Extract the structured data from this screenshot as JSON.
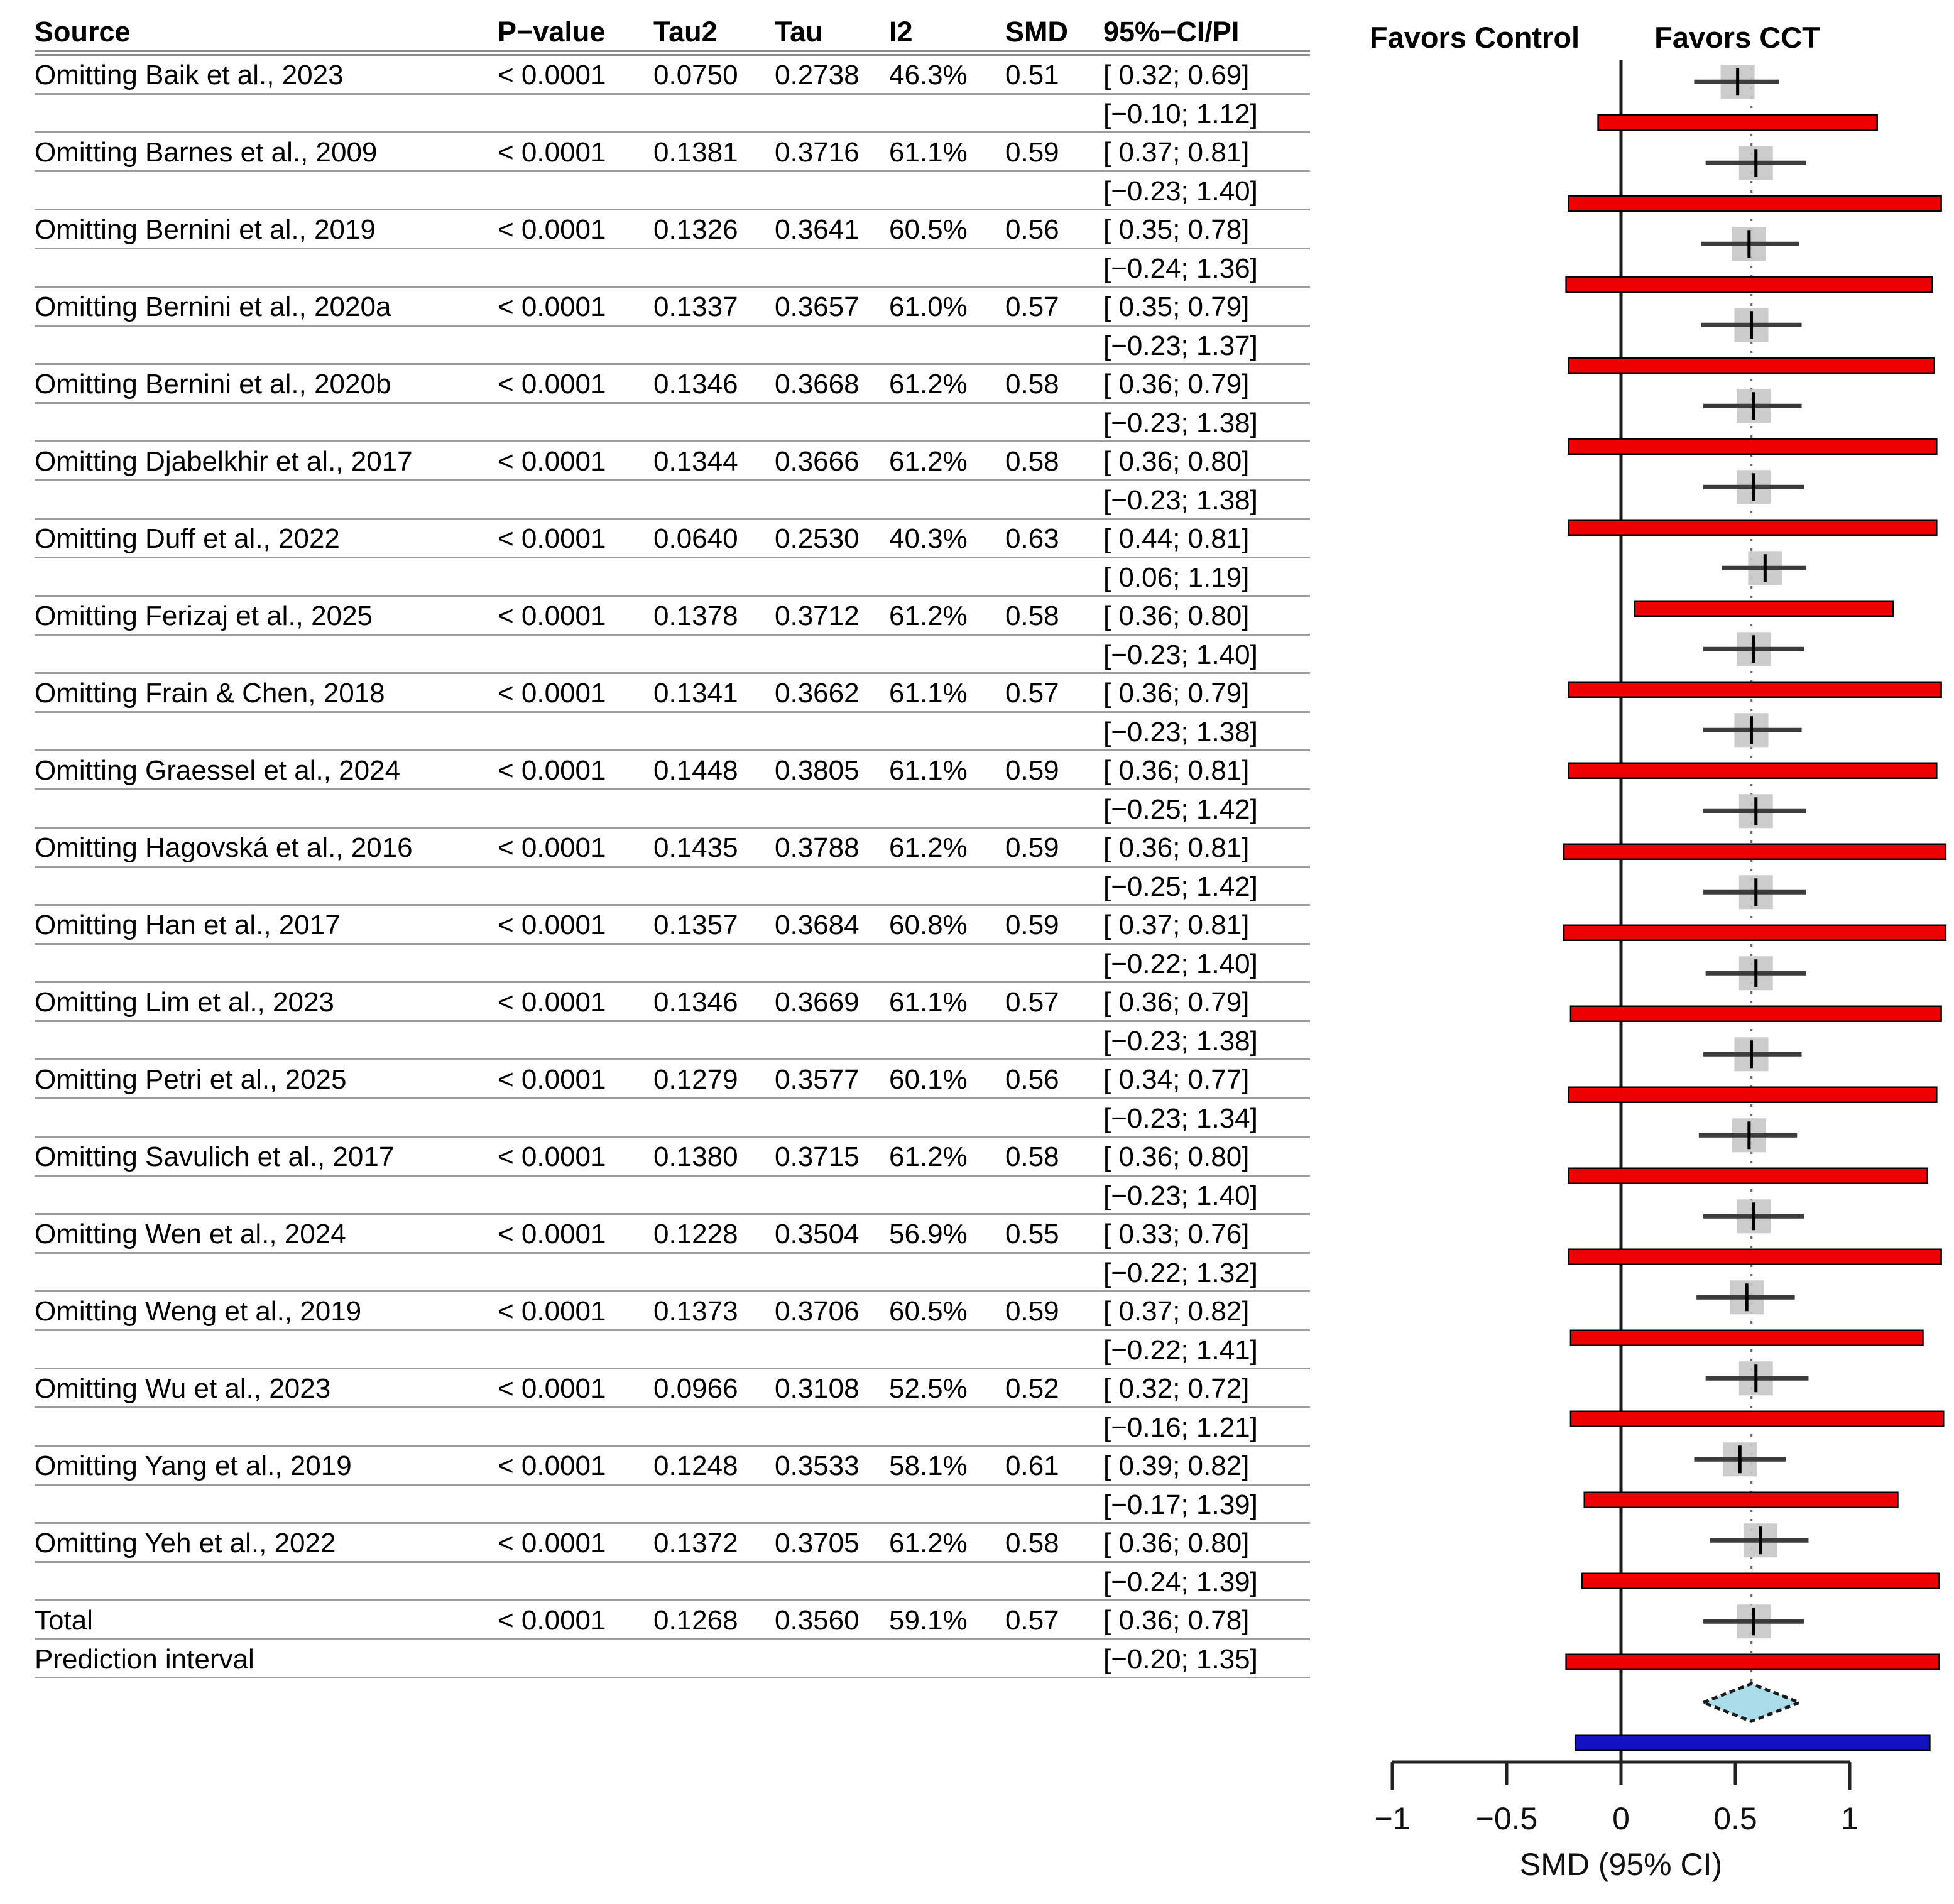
{
  "table": {
    "headers": {
      "source": "Source",
      "p": "P−value",
      "tau2": "Tau2",
      "tau": "Tau",
      "i2": "I2",
      "smd": "SMD",
      "ci": "95%−CI/PI"
    }
  },
  "chart_data": {
    "type": "forest",
    "xlabel": "SMD (95% CI)",
    "x_ticks": [
      "−1",
      "−0.5",
      "0",
      "0.5",
      "1"
    ],
    "x_tick_values": [
      -1,
      -0.5,
      0,
      0.5,
      1
    ],
    "xlim": [
      -1,
      1.46
    ],
    "favors_left": "Favors Control",
    "favors_right": "Favors CCT",
    "reference_line": 0,
    "overall_dotted_line": 0.57,
    "colors": {
      "pi_bar": "#ee0000",
      "prediction_bar": "#1212c4",
      "diamond_fill": "#aadde9",
      "square_fill": "#c6c6c6",
      "whisker": "#3c3c3c",
      "rule": "#9c9c9c"
    },
    "studies": [
      {
        "source": "Omitting Baik et al., 2023",
        "p": "< 0.0001",
        "tau2": "0.0750",
        "tau": "0.2738",
        "i2": "46.3%",
        "smd": 0.51,
        "smd_text": "0.51",
        "ci": [
          0.32,
          0.69
        ],
        "ci_text": "[ 0.32; 0.69]",
        "pi": [
          -0.1,
          1.12
        ],
        "pi_text": "[−0.10; 1.12]"
      },
      {
        "source": "Omitting Barnes et al., 2009",
        "p": "< 0.0001",
        "tau2": "0.1381",
        "tau": "0.3716",
        "i2": "61.1%",
        "smd": 0.59,
        "smd_text": "0.59",
        "ci": [
          0.37,
          0.81
        ],
        "ci_text": "[ 0.37; 0.81]",
        "pi": [
          -0.23,
          1.4
        ],
        "pi_text": "[−0.23; 1.40]"
      },
      {
        "source": "Omitting Bernini et al., 2019",
        "p": "< 0.0001",
        "tau2": "0.1326",
        "tau": "0.3641",
        "i2": "60.5%",
        "smd": 0.56,
        "smd_text": "0.56",
        "ci": [
          0.35,
          0.78
        ],
        "ci_text": "[ 0.35; 0.78]",
        "pi": [
          -0.24,
          1.36
        ],
        "pi_text": "[−0.24; 1.36]"
      },
      {
        "source": "Omitting Bernini et al., 2020a",
        "p": "< 0.0001",
        "tau2": "0.1337",
        "tau": "0.3657",
        "i2": "61.0%",
        "smd": 0.57,
        "smd_text": "0.57",
        "ci": [
          0.35,
          0.79
        ],
        "ci_text": "[ 0.35; 0.79]",
        "pi": [
          -0.23,
          1.37
        ],
        "pi_text": "[−0.23; 1.37]"
      },
      {
        "source": "Omitting Bernini et al., 2020b",
        "p": "< 0.0001",
        "tau2": "0.1346",
        "tau": "0.3668",
        "i2": "61.2%",
        "smd": 0.58,
        "smd_text": "0.58",
        "ci": [
          0.36,
          0.79
        ],
        "ci_text": "[ 0.36; 0.79]",
        "pi": [
          -0.23,
          1.38
        ],
        "pi_text": "[−0.23; 1.38]"
      },
      {
        "source": "Omitting Djabelkhir et al., 2017",
        "p": "< 0.0001",
        "tau2": "0.1344",
        "tau": "0.3666",
        "i2": "61.2%",
        "smd": 0.58,
        "smd_text": "0.58",
        "ci": [
          0.36,
          0.8
        ],
        "ci_text": "[ 0.36; 0.80]",
        "pi": [
          -0.23,
          1.38
        ],
        "pi_text": "[−0.23; 1.38]"
      },
      {
        "source": "Omitting Duff et al., 2022",
        "p": "< 0.0001",
        "tau2": "0.0640",
        "tau": "0.2530",
        "i2": "40.3%",
        "smd": 0.63,
        "smd_text": "0.63",
        "ci": [
          0.44,
          0.81
        ],
        "ci_text": "[ 0.44; 0.81]",
        "pi": [
          0.06,
          1.19
        ],
        "pi_text": "[ 0.06; 1.19]"
      },
      {
        "source": "Omitting Ferizaj et al., 2025",
        "p": "< 0.0001",
        "tau2": "0.1378",
        "tau": "0.3712",
        "i2": "61.2%",
        "smd": 0.58,
        "smd_text": "0.58",
        "ci": [
          0.36,
          0.8
        ],
        "ci_text": "[ 0.36; 0.80]",
        "pi": [
          -0.23,
          1.4
        ],
        "pi_text": "[−0.23; 1.40]"
      },
      {
        "source": "Omitting Frain & Chen, 2018",
        "p": "< 0.0001",
        "tau2": "0.1341",
        "tau": "0.3662",
        "i2": "61.1%",
        "smd": 0.57,
        "smd_text": "0.57",
        "ci": [
          0.36,
          0.79
        ],
        "ci_text": "[ 0.36; 0.79]",
        "pi": [
          -0.23,
          1.38
        ],
        "pi_text": "[−0.23; 1.38]"
      },
      {
        "source": "Omitting Graessel et al., 2024",
        "p": "< 0.0001",
        "tau2": "0.1448",
        "tau": "0.3805",
        "i2": "61.1%",
        "smd": 0.59,
        "smd_text": "0.59",
        "ci": [
          0.36,
          0.81
        ],
        "ci_text": "[ 0.36; 0.81]",
        "pi": [
          -0.25,
          1.42
        ],
        "pi_text": "[−0.25; 1.42]"
      },
      {
        "source": "Omitting Hagovská et al., 2016",
        "p": "< 0.0001",
        "tau2": "0.1435",
        "tau": "0.3788",
        "i2": "61.2%",
        "smd": 0.59,
        "smd_text": "0.59",
        "ci": [
          0.36,
          0.81
        ],
        "ci_text": "[ 0.36; 0.81]",
        "pi": [
          -0.25,
          1.42
        ],
        "pi_text": "[−0.25; 1.42]"
      },
      {
        "source": "Omitting Han et al., 2017",
        "p": "< 0.0001",
        "tau2": "0.1357",
        "tau": "0.3684",
        "i2": "60.8%",
        "smd": 0.59,
        "smd_text": "0.59",
        "ci": [
          0.37,
          0.81
        ],
        "ci_text": "[ 0.37; 0.81]",
        "pi": [
          -0.22,
          1.4
        ],
        "pi_text": "[−0.22; 1.40]"
      },
      {
        "source": "Omitting Lim et al., 2023",
        "p": "< 0.0001",
        "tau2": "0.1346",
        "tau": "0.3669",
        "i2": "61.1%",
        "smd": 0.57,
        "smd_text": "0.57",
        "ci": [
          0.36,
          0.79
        ],
        "ci_text": "[ 0.36; 0.79]",
        "pi": [
          -0.23,
          1.38
        ],
        "pi_text": "[−0.23; 1.38]"
      },
      {
        "source": "Omitting Petri et al., 2025",
        "p": "< 0.0001",
        "tau2": "0.1279",
        "tau": "0.3577",
        "i2": "60.1%",
        "smd": 0.56,
        "smd_text": "0.56",
        "ci": [
          0.34,
          0.77
        ],
        "ci_text": "[ 0.34; 0.77]",
        "pi": [
          -0.23,
          1.34
        ],
        "pi_text": "[−0.23; 1.34]"
      },
      {
        "source": "Omitting Savulich et al., 2017",
        "p": "< 0.0001",
        "tau2": "0.1380",
        "tau": "0.3715",
        "i2": "61.2%",
        "smd": 0.58,
        "smd_text": "0.58",
        "ci": [
          0.36,
          0.8
        ],
        "ci_text": "[ 0.36; 0.80]",
        "pi": [
          -0.23,
          1.4
        ],
        "pi_text": "[−0.23; 1.40]"
      },
      {
        "source": "Omitting Wen et al., 2024",
        "p": "< 0.0001",
        "tau2": "0.1228",
        "tau": "0.3504",
        "i2": "56.9%",
        "smd": 0.55,
        "smd_text": "0.55",
        "ci": [
          0.33,
          0.76
        ],
        "ci_text": "[ 0.33; 0.76]",
        "pi": [
          -0.22,
          1.32
        ],
        "pi_text": "[−0.22; 1.32]"
      },
      {
        "source": "Omitting Weng et al., 2019",
        "p": "< 0.0001",
        "tau2": "0.1373",
        "tau": "0.3706",
        "i2": "60.5%",
        "smd": 0.59,
        "smd_text": "0.59",
        "ci": [
          0.37,
          0.82
        ],
        "ci_text": "[ 0.37; 0.82]",
        "pi": [
          -0.22,
          1.41
        ],
        "pi_text": "[−0.22; 1.41]"
      },
      {
        "source": "Omitting Wu et al., 2023",
        "p": "< 0.0001",
        "tau2": "0.0966",
        "tau": "0.3108",
        "i2": "52.5%",
        "smd": 0.52,
        "smd_text": "0.52",
        "ci": [
          0.32,
          0.72
        ],
        "ci_text": "[ 0.32; 0.72]",
        "pi": [
          -0.16,
          1.21
        ],
        "pi_text": "[−0.16; 1.21]"
      },
      {
        "source": "Omitting Yang et al., 2019",
        "p": "< 0.0001",
        "tau2": "0.1248",
        "tau": "0.3533",
        "i2": "58.1%",
        "smd": 0.61,
        "smd_text": "0.61",
        "ci": [
          0.39,
          0.82
        ],
        "ci_text": "[ 0.39; 0.82]",
        "pi": [
          -0.17,
          1.39
        ],
        "pi_text": "[−0.17; 1.39]"
      },
      {
        "source": "Omitting Yeh et al., 2022",
        "p": "< 0.0001",
        "tau2": "0.1372",
        "tau": "0.3705",
        "i2": "61.2%",
        "smd": 0.58,
        "smd_text": "0.58",
        "ci": [
          0.36,
          0.8
        ],
        "ci_text": "[ 0.36; 0.80]",
        "pi": [
          -0.24,
          1.39
        ],
        "pi_text": "[−0.24; 1.39]"
      }
    ],
    "total": {
      "source": "Total",
      "p": "< 0.0001",
      "tau2": "0.1268",
      "tau": "0.3560",
      "i2": "59.1%",
      "smd": 0.57,
      "smd_text": "0.57",
      "ci": [
        0.36,
        0.78
      ],
      "ci_text": "[ 0.36; 0.78]"
    },
    "prediction": {
      "source": "Prediction interval",
      "pi": [
        -0.2,
        1.35
      ],
      "pi_text": "[−0.20; 1.35]"
    }
  }
}
